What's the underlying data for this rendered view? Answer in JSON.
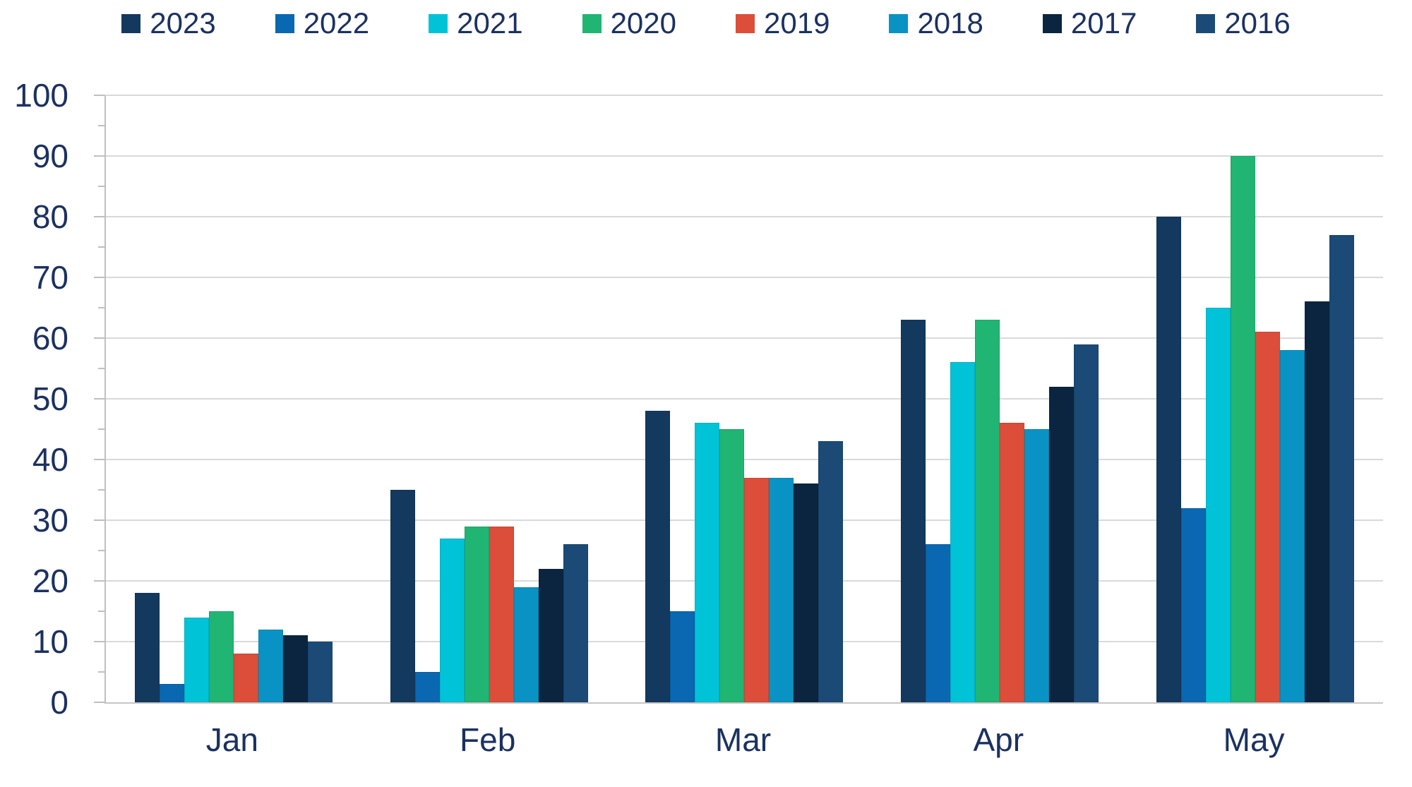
{
  "chart_data": {
    "type": "bar",
    "title": "",
    "xlabel": "",
    "ylabel": "",
    "categories": [
      "Jan",
      "Feb",
      "Mar",
      "Apr",
      "May"
    ],
    "series": [
      {
        "name": "2023",
        "color": "#14395F",
        "values": [
          18,
          35,
          48,
          63,
          80
        ]
      },
      {
        "name": "2022",
        "color": "#0A67B2",
        "values": [
          3,
          5,
          15,
          26,
          32
        ]
      },
      {
        "name": "2021",
        "color": "#00C3D8",
        "values": [
          14,
          27,
          46,
          56,
          65
        ]
      },
      {
        "name": "2020",
        "color": "#21B573",
        "values": [
          15,
          29,
          45,
          63,
          90
        ]
      },
      {
        "name": "2019",
        "color": "#DC4E3A",
        "values": [
          8,
          29,
          37,
          46,
          61
        ]
      },
      {
        "name": "2018",
        "color": "#0893C4",
        "values": [
          12,
          19,
          37,
          45,
          58
        ]
      },
      {
        "name": "2017",
        "color": "#0B2540",
        "values": [
          11,
          22,
          36,
          52,
          66
        ]
      },
      {
        "name": "2016",
        "color": "#1B4A76",
        "values": [
          10,
          26,
          43,
          59,
          77
        ]
      }
    ],
    "ylim": [
      0,
      100
    ],
    "y_major_ticks": [
      0,
      10,
      20,
      30,
      40,
      50,
      60,
      70,
      80,
      90,
      100
    ],
    "y_minor_ticks": [
      5,
      15,
      25,
      35,
      45,
      55,
      65,
      75,
      85,
      95
    ],
    "grid": "horizontal",
    "legend_position": "top"
  },
  "colors": {
    "text": "#1B3160",
    "gridline": "#D9D9D9",
    "axis_line": "#BFBFBF",
    "background": "#FFFFFF"
  }
}
